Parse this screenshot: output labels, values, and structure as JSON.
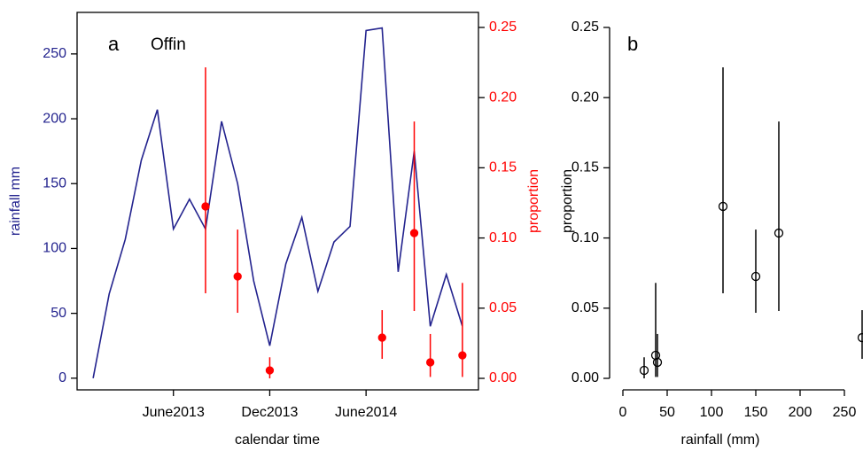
{
  "chart_data": [
    {
      "type": "line",
      "title": "a",
      "subtitle": "Offin",
      "xlabel": "calendar time",
      "ylabel": "rainfall mm",
      "y2label": "proportion",
      "x": [
        "2013-01",
        "2013-02",
        "2013-03",
        "2013-04",
        "2013-05",
        "2013-06",
        "2013-07",
        "2013-08",
        "2013-09",
        "2013-10",
        "2013-11",
        "2013-12",
        "2014-01",
        "2014-02",
        "2014-03",
        "2014-04",
        "2014-05",
        "2014-06",
        "2014-07",
        "2014-08",
        "2014-09",
        "2014-10",
        "2014-11",
        "2014-12"
      ],
      "series": [
        {
          "type": "line",
          "color": "#23238e",
          "values": [
            0,
            65,
            107,
            168,
            207,
            115,
            138,
            115,
            198,
            150,
            75,
            25,
            88,
            124,
            67,
            105,
            117,
            268,
            270,
            82,
            175,
            40,
            80,
            40
          ]
        },
        {
          "type": "scatter",
          "axis": "y2",
          "color": "#ff0000",
          "values": [
            null,
            null,
            null,
            null,
            null,
            null,
            null,
            0.1225,
            null,
            0.0726,
            null,
            0.0057,
            null,
            null,
            null,
            null,
            null,
            null,
            0.029,
            null,
            0.1035,
            0.0114,
            null,
            0.0164
          ],
          "lower": [
            null,
            null,
            null,
            null,
            null,
            null,
            null,
            0.0606,
            null,
            0.0467,
            null,
            0,
            null,
            null,
            null,
            null,
            null,
            null,
            0.0139,
            null,
            0.048,
            0.001,
            null,
            0.001
          ],
          "upper": [
            null,
            null,
            null,
            null,
            null,
            null,
            null,
            0.2216,
            null,
            0.106,
            null,
            0.015,
            null,
            null,
            null,
            null,
            null,
            null,
            0.0486,
            null,
            0.183,
            0.0316,
            null,
            0.068
          ]
        }
      ],
      "xlim": [
        "2012-12",
        "2015-01"
      ],
      "xticks": [
        {
          "value": "2013-06",
          "label": "June2013"
        },
        {
          "value": "2013-12",
          "label": "Dec2013"
        },
        {
          "value": "2014-06",
          "label": "June2014"
        }
      ],
      "ylim": [
        -9,
        282
      ],
      "yticks": [
        0,
        50,
        100,
        150,
        200,
        250
      ],
      "y2lim": [
        -0.0082,
        0.2607
      ],
      "y2ticks": [
        {
          "value": 0,
          "label": "0.00"
        },
        0.05,
        {
          "value": 0.1,
          "label": "0.10"
        },
        0.15,
        {
          "value": 0.2,
          "label": "0.20"
        },
        0.25
      ]
    },
    {
      "type": "scatter",
      "title": "b",
      "xlabel": "rainfall (mm)",
      "ylabel": "proportion",
      "x": [
        113,
        150,
        24,
        270,
        176,
        39,
        37
      ],
      "values": [
        0.1225,
        0.0726,
        0.0057,
        0.029,
        0.1035,
        0.0114,
        0.0164
      ],
      "lower": [
        0.0606,
        0.0467,
        0,
        0.0139,
        0.048,
        0.001,
        0.001
      ],
      "upper": [
        0.2216,
        0.106,
        0.015,
        0.0486,
        0.183,
        0.0316,
        0.068
      ],
      "color": "#000000",
      "xlim": [
        -15,
        271
      ],
      "xticks": [
        0,
        50,
        100,
        150,
        200,
        250
      ],
      "ylim": [
        -0.0082,
        0.2607
      ],
      "yticks": [
        {
          "value": 0,
          "label": "0.00"
        },
        0.05,
        {
          "value": 0.1,
          "label": "0.10"
        },
        0.15,
        {
          "value": 0.2,
          "label": "0.20"
        },
        0.25
      ]
    }
  ]
}
